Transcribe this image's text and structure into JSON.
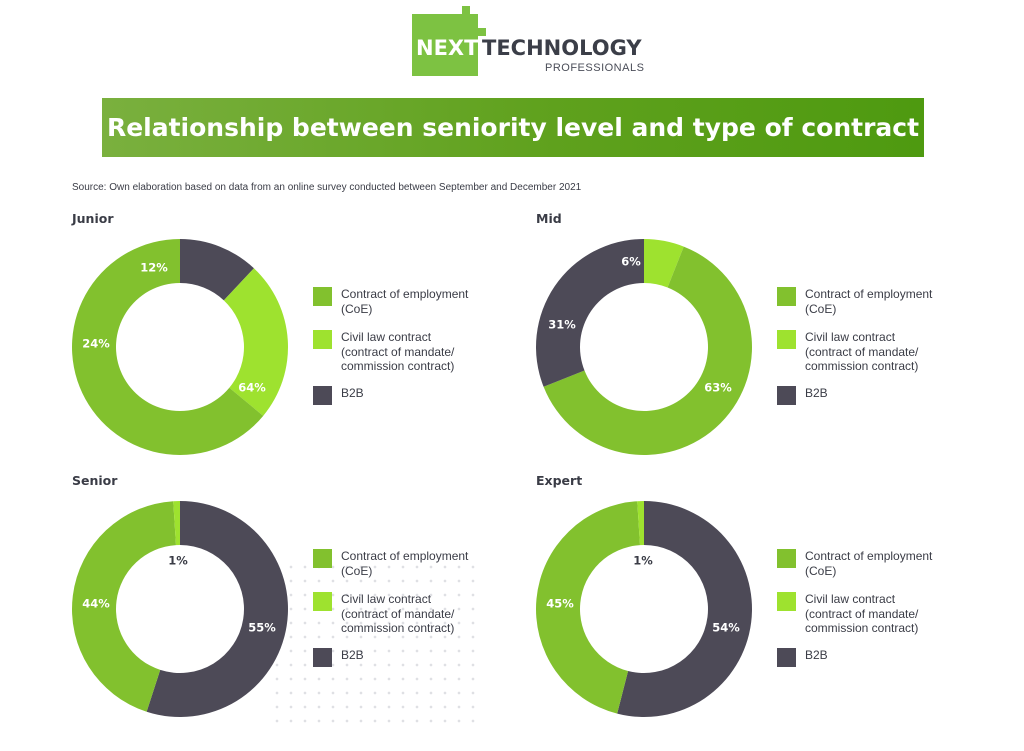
{
  "logo": {
    "next": "NEXT",
    "technology": "TECHNOLOGY",
    "professionals": "PROFESSIONALS"
  },
  "banner_title": "Relationship between seniority level and type of contract",
  "source": "Source: Own elaboration based on data from an online survey conducted between September and December 2021",
  "colors": {
    "coe": "#82c12e",
    "civil": "#9ee22f",
    "b2b": "#4d4a57",
    "banner": "#5fa11d"
  },
  "legend": [
    {
      "label": "Contract of employment\n(CoE)",
      "color": "#82c12e"
    },
    {
      "label": "Civil law contract\n(contract of mandate/\ncommission contract)",
      "color": "#9ee22f"
    },
    {
      "label": "B2B",
      "color": "#4d4a57"
    }
  ],
  "chart_data": [
    {
      "type": "pie",
      "title": "Junior",
      "categories": [
        "Contract of employment (CoE)",
        "Civil law contract (contract of mandate/ commission contract)",
        "B2B"
      ],
      "values": [
        64,
        24,
        12
      ],
      "labels": [
        "64%",
        "24%",
        "12%"
      ],
      "donut": true
    },
    {
      "type": "pie",
      "title": "Mid",
      "categories": [
        "Contract of employment (CoE)",
        "Civil law contract (contract of mandate/ commission contract)",
        "B2B"
      ],
      "values": [
        63,
        6,
        31
      ],
      "labels": [
        "63%",
        "6%",
        "31%"
      ],
      "donut": true
    },
    {
      "type": "pie",
      "title": "Senior",
      "categories": [
        "Contract of employment (CoE)",
        "Civil law contract (contract of mandate/ commission contract)",
        "B2B"
      ],
      "values": [
        44,
        1,
        55
      ],
      "labels": [
        "44%",
        "1%",
        "55%"
      ],
      "donut": true
    },
    {
      "type": "pie",
      "title": "Expert",
      "categories": [
        "Contract of employment (CoE)",
        "Civil law contract (contract of mandate/ commission contract)",
        "B2B"
      ],
      "values": [
        45,
        1,
        54
      ],
      "labels": [
        "45%",
        "1%",
        "54%"
      ],
      "donut": true
    }
  ]
}
